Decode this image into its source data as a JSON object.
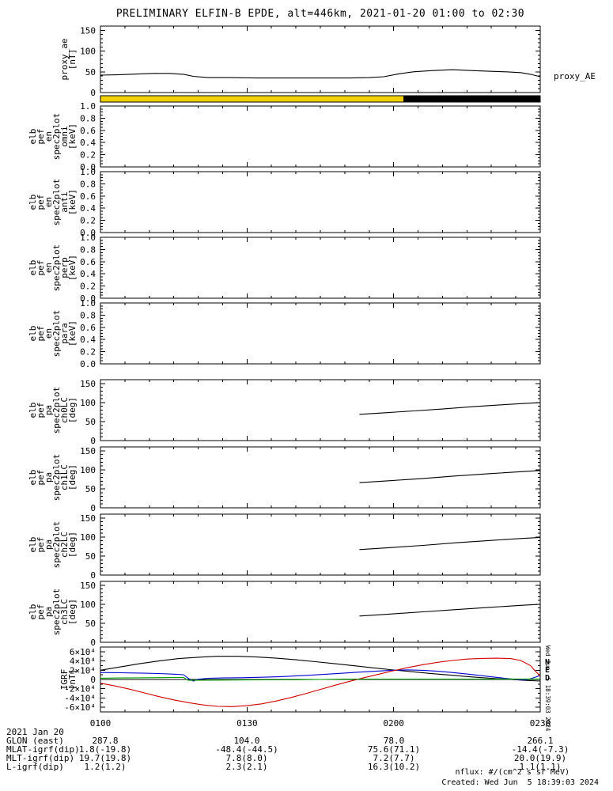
{
  "title": "PRELIMINARY ELFIN-B EPDE, alt=446km, 2021-01-20 01:00 to 02:30",
  "right_label": "proxy_AE",
  "footer": {
    "nflux_note": "nflux: #/(cm^2 s sr MeV)",
    "created": "Created: Wed Jun  5 18:39:03 2024",
    "side_timestamp": "Wed Jun  5 18:39:03 2024",
    "date_label": "2021 Jan 20",
    "tick_labels": [
      "0100",
      "0130",
      "0200",
      "0230"
    ],
    "axis_rows": [
      {
        "label": "GLON (east)",
        "values": [
          "287.8",
          "104.0",
          "78.0",
          "266.1"
        ]
      },
      {
        "label": "MLAT-igrf(dip)",
        "values": [
          "1.8(-19.8)",
          "-48.4(-44.5)",
          "75.6(71.1)",
          "-14.4(-7.3)"
        ]
      },
      {
        "label": "MLT-igrf(dip)",
        "values": [
          "19.7(19.8)",
          "7.8(8.0)",
          "7.2(7.7)",
          "20.0(19.9)"
        ]
      },
      {
        "label": "L-igrf(dip)",
        "values": [
          "1.2(1.2)",
          "2.3(2.1)",
          "16.3(10.2)",
          "1.1(1.1)"
        ]
      }
    ]
  },
  "orbit_bar": {
    "segments": [
      {
        "start": 60,
        "end": 122,
        "color": "#f0d000"
      },
      {
        "start": 122,
        "end": 150,
        "color": "#000000"
      }
    ]
  },
  "x_axis": {
    "range": [
      60,
      150
    ],
    "major": [
      60,
      90,
      120,
      150
    ],
    "minor_step": 5,
    "labels": [
      "0100",
      "0130",
      "0200",
      "0230"
    ]
  },
  "chart_data": [
    {
      "type": "line",
      "name": "proxy_ae",
      "label_lines": [
        "proxy_ae",
        "[nT]"
      ],
      "ylim": [
        0,
        160
      ],
      "yticks": [
        0,
        50,
        100,
        150
      ],
      "ytick_labels": [
        "0",
        "50",
        "100",
        "150"
      ],
      "yminor": 10,
      "series": [
        {
          "name": "proxy_AE",
          "color": "#000000",
          "points": [
            [
              60,
              42
            ],
            [
              64,
              43
            ],
            [
              68,
              45
            ],
            [
              71,
              46
            ],
            [
              74,
              46
            ],
            [
              77,
              44
            ],
            [
              79,
              39
            ],
            [
              82,
              36
            ],
            [
              86,
              36
            ],
            [
              92,
              35
            ],
            [
              98,
              35
            ],
            [
              105,
              35
            ],
            [
              111,
              35
            ],
            [
              115,
              36
            ],
            [
              118,
              38
            ],
            [
              121,
              45
            ],
            [
              124,
              50
            ],
            [
              128,
              53
            ],
            [
              132,
              55
            ],
            [
              136,
              53
            ],
            [
              140,
              51
            ],
            [
              143,
              50
            ],
            [
              146,
              48
            ],
            [
              148,
              44
            ],
            [
              150,
              38
            ]
          ]
        }
      ]
    },
    {
      "type": "spectrogram-empty",
      "name": "elb_pef_en_spec2plot_omni",
      "label_lines": [
        "elb",
        "pef",
        "en",
        "spec2plot",
        "omni",
        "[keV]"
      ],
      "ylim": [
        0,
        1
      ],
      "yticks": [
        0,
        0.2,
        0.4,
        0.6,
        0.8,
        1
      ],
      "ytick_labels": [
        "0.0",
        "0.2",
        "0.4",
        "0.6",
        "0.8",
        "1.0"
      ],
      "yminor": 0.05,
      "series": []
    },
    {
      "type": "spectrogram-empty",
      "name": "elb_pef_en_spec2plot_anti",
      "label_lines": [
        "elb",
        "pef",
        "en",
        "spec2plot",
        "anti",
        "[keV]"
      ],
      "ylim": [
        0,
        1
      ],
      "yticks": [
        0,
        0.2,
        0.4,
        0.6,
        0.8,
        1
      ],
      "ytick_labels": [
        "0.0",
        "0.2",
        "0.4",
        "0.6",
        "0.8",
        "1.0"
      ],
      "yminor": 0.05,
      "series": []
    },
    {
      "type": "spectrogram-empty",
      "name": "elb_pef_en_spec2plot_perp",
      "label_lines": [
        "elb",
        "pef",
        "en",
        "spec2plot",
        "perp",
        "[keV]"
      ],
      "ylim": [
        0,
        1
      ],
      "yticks": [
        0,
        0.2,
        0.4,
        0.6,
        0.8,
        1
      ],
      "ytick_labels": [
        "0.0",
        "0.2",
        "0.4",
        "0.6",
        "0.8",
        "1.0"
      ],
      "yminor": 0.05,
      "series": []
    },
    {
      "type": "spectrogram-empty",
      "name": "elb_pef_en_spec2plot_para",
      "label_lines": [
        "elb",
        "pef",
        "en",
        "spec2plot",
        "para",
        "[keV]"
      ],
      "ylim": [
        0,
        1
      ],
      "yticks": [
        0,
        0.2,
        0.4,
        0.6,
        0.8,
        1
      ],
      "ytick_labels": [
        "0.0",
        "0.2",
        "0.4",
        "0.6",
        "0.8",
        "1.0"
      ],
      "yminor": 0.05,
      "series": []
    },
    {
      "type": "line",
      "name": "elb_pef_pa_spec2plot_ch0lc",
      "label_lines": [
        "elb",
        "pef",
        "pa",
        "spec2plot",
        "ch0LC",
        "[deg]"
      ],
      "ylim": [
        0,
        160
      ],
      "yticks": [
        0,
        50,
        100,
        150
      ],
      "ytick_labels": [
        "0",
        "50",
        "100",
        "150"
      ],
      "yminor": 10,
      "series": [
        {
          "name": "ch0LC",
          "color": "#000000",
          "points": [
            [
              113,
              69
            ],
            [
              118,
              73
            ],
            [
              124,
              78
            ],
            [
              130,
              83
            ],
            [
              136,
              89
            ],
            [
              142,
              94
            ],
            [
              146,
              97
            ],
            [
              150,
              100
            ]
          ]
        }
      ]
    },
    {
      "type": "line",
      "name": "elb_pef_pa_spec2plot_ch1lc",
      "label_lines": [
        "elb",
        "pef",
        "pa",
        "spec2plot",
        "ch1LC",
        "[deg]"
      ],
      "ylim": [
        0,
        160
      ],
      "yticks": [
        0,
        50,
        100,
        150
      ],
      "ytick_labels": [
        "0",
        "50",
        "100",
        "150"
      ],
      "yminor": 10,
      "series": [
        {
          "name": "ch1LC",
          "color": "#000000",
          "points": [
            [
              113,
              66
            ],
            [
              119,
              71
            ],
            [
              126,
              77
            ],
            [
              133,
              84
            ],
            [
              140,
              90
            ],
            [
              146,
              95
            ],
            [
              150,
              98
            ]
          ]
        }
      ]
    },
    {
      "type": "line",
      "name": "elb_pef_pa_spec2plot_ch2lc",
      "label_lines": [
        "elb",
        "pef",
        "pa",
        "spec2plot",
        "ch2LC",
        "[deg]"
      ],
      "ylim": [
        0,
        160
      ],
      "yticks": [
        0,
        50,
        100,
        150
      ],
      "ytick_labels": [
        "0",
        "50",
        "100",
        "150"
      ],
      "yminor": 10,
      "series": [
        {
          "name": "ch2LC",
          "color": "#000000",
          "points": [
            [
              113,
              67
            ],
            [
              119,
              72
            ],
            [
              126,
              78
            ],
            [
              133,
              85
            ],
            [
              140,
              91
            ],
            [
              146,
              96
            ],
            [
              150,
              99
            ]
          ]
        }
      ]
    },
    {
      "type": "line",
      "name": "elb_pef_pa_spec2plot_ch3lc",
      "label_lines": [
        "elb",
        "pef",
        "pa",
        "spec2plot",
        "ch3LC",
        "[deg]"
      ],
      "ylim": [
        0,
        160
      ],
      "yticks": [
        0,
        50,
        100,
        150
      ],
      "ytick_labels": [
        "0",
        "50",
        "100",
        "150"
      ],
      "yminor": 10,
      "series": [
        {
          "name": "ch3LC",
          "color": "#000000",
          "points": [
            [
              113,
              69
            ],
            [
              119,
              74
            ],
            [
              126,
              80
            ],
            [
              133,
              86
            ],
            [
              140,
              92
            ],
            [
              146,
              97
            ],
            [
              150,
              100
            ]
          ]
        }
      ]
    },
    {
      "type": "line",
      "name": "igrf",
      "label_lines": [
        "IGRF",
        "[nT]"
      ],
      "ylim": [
        -70000,
        70000
      ],
      "yticks": [
        -60000,
        -40000,
        -20000,
        0,
        20000,
        40000,
        60000
      ],
      "ytick_labels": [
        "-6×10⁴",
        "-4×10⁴",
        "-2×10⁴",
        "0",
        "2×10⁴",
        "4×10⁴",
        "6×10⁴"
      ],
      "yminor": 10000,
      "zero_line": true,
      "legend": [
        {
          "label": "N",
          "color": "#0000d0"
        },
        {
          "label": "E",
          "color": "#d06000"
        },
        {
          "label": "D",
          "color": "#00a000"
        }
      ],
      "series": [
        {
          "name": "black",
          "color": "#000000",
          "points": [
            [
              60,
              20000
            ],
            [
              64,
              27000
            ],
            [
              68,
              34000
            ],
            [
              72,
              40000
            ],
            [
              76,
              45000
            ],
            [
              80,
              48000
            ],
            [
              84,
              50000
            ],
            [
              88,
              50000
            ],
            [
              92,
              48500
            ],
            [
              96,
              46000
            ],
            [
              100,
              42500
            ],
            [
              104,
              38500
            ],
            [
              108,
              34000
            ],
            [
              112,
              29500
            ],
            [
              116,
              25000
            ],
            [
              120,
              20500
            ],
            [
              124,
              16500
            ],
            [
              128,
              12500
            ],
            [
              132,
              9000
            ],
            [
              136,
              5500
            ],
            [
              140,
              2500
            ],
            [
              144,
              0
            ],
            [
              147,
              -2000
            ],
            [
              150,
              -3500
            ]
          ]
        },
        {
          "name": "blue",
          "color": "#0000d0",
          "points": [
            [
              60,
              15000
            ],
            [
              64,
              14500
            ],
            [
              68,
              13800
            ],
            [
              72,
              12800
            ],
            [
              75,
              11500
            ],
            [
              77,
              10200
            ],
            [
              78,
              2000
            ],
            [
              79,
              -3500
            ],
            [
              80,
              500
            ],
            [
              82,
              2500
            ],
            [
              85,
              3200
            ],
            [
              89,
              3800
            ],
            [
              93,
              4800
            ],
            [
              97,
              6200
            ],
            [
              101,
              8200
            ],
            [
              105,
              10600
            ],
            [
              109,
              13200
            ],
            [
              113,
              15800
            ],
            [
              117,
              18200
            ],
            [
              120,
              20000
            ],
            [
              123,
              20600
            ],
            [
              126,
              19800
            ],
            [
              129,
              17800
            ],
            [
              132,
              15000
            ],
            [
              135,
              11800
            ],
            [
              138,
              8200
            ],
            [
              141,
              4600
            ],
            [
              144,
              1200
            ],
            [
              146,
              -800
            ],
            [
              147,
              -1200
            ],
            [
              148,
              1500
            ],
            [
              149,
              5000
            ],
            [
              150,
              8500
            ]
          ]
        },
        {
          "name": "red",
          "color": "#d00000",
          "points": [
            [
              60,
              -8000
            ],
            [
              63,
              -14000
            ],
            [
              66,
              -21000
            ],
            [
              69,
              -29000
            ],
            [
              72,
              -37000
            ],
            [
              75,
              -44000
            ],
            [
              78,
              -50000
            ],
            [
              81,
              -55000
            ],
            [
              84,
              -58000
            ],
            [
              87,
              -58500
            ],
            [
              90,
              -56500
            ],
            [
              93,
              -52500
            ],
            [
              96,
              -46500
            ],
            [
              99,
              -39000
            ],
            [
              102,
              -30500
            ],
            [
              105,
              -21500
            ],
            [
              108,
              -12500
            ],
            [
              111,
              -4000
            ],
            [
              114,
              4000
            ],
            [
              117,
              11500
            ],
            [
              120,
              19000
            ],
            [
              123,
              26000
            ],
            [
              126,
              32000
            ],
            [
              129,
              37000
            ],
            [
              132,
              41000
            ],
            [
              135,
              44000
            ],
            [
              138,
              45500
            ],
            [
              141,
              46000
            ],
            [
              144,
              45000
            ],
            [
              146,
              41000
            ],
            [
              148,
              30000
            ],
            [
              149,
              18000
            ],
            [
              150,
              8000
            ]
          ]
        },
        {
          "name": "green",
          "color": "#00a000",
          "points": [
            [
              60,
              2800
            ],
            [
              64,
              3200
            ],
            [
              68,
              3600
            ],
            [
              72,
              4000
            ],
            [
              75,
              4300
            ],
            [
              77,
              4400
            ],
            [
              78,
              -1800
            ],
            [
              81,
              -1500
            ],
            [
              85,
              -1300
            ],
            [
              90,
              -1100
            ],
            [
              95,
              -900
            ],
            [
              100,
              -600
            ],
            [
              105,
              0
            ],
            [
              110,
              600
            ],
            [
              115,
              800
            ],
            [
              120,
              800
            ],
            [
              125,
              850
            ],
            [
              130,
              900
            ],
            [
              135,
              900
            ],
            [
              140,
              950
            ],
            [
              145,
              1000
            ],
            [
              150,
              1000
            ]
          ]
        }
      ]
    }
  ]
}
